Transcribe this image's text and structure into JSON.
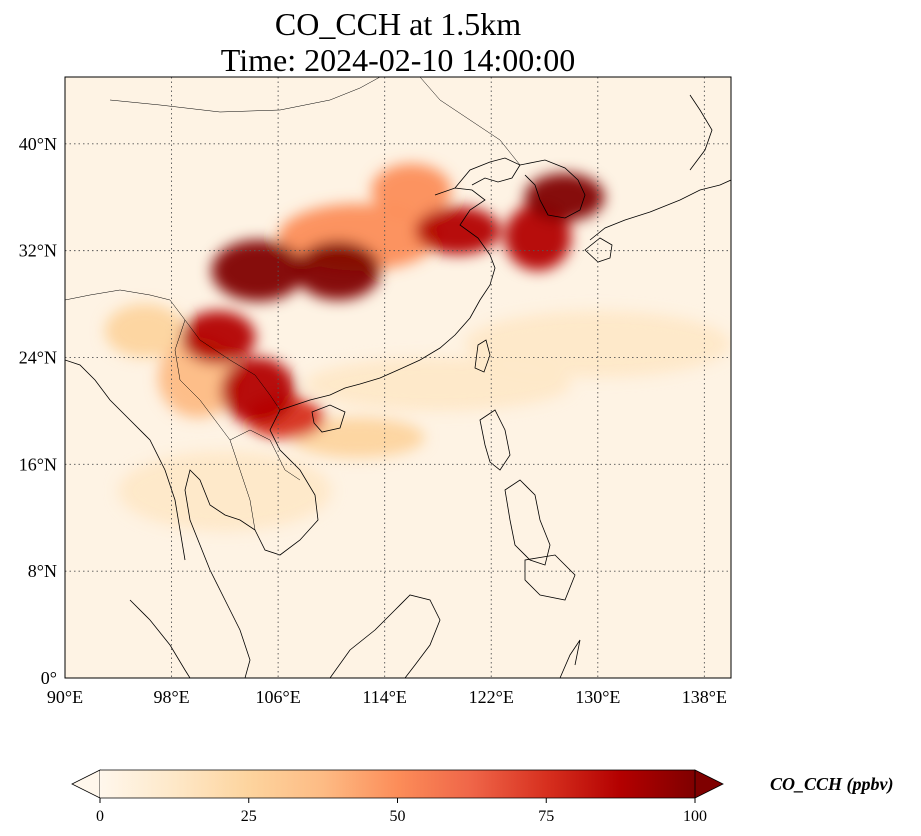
{
  "title": {
    "line1": "CO_CCH at 1.5km",
    "line2": "Time: 2024-02-10 14:00:00"
  },
  "map": {
    "lon_range": [
      90,
      140
    ],
    "lat_range": [
      0,
      45
    ],
    "x_ticks": [
      {
        "value": 90,
        "label": "90°E"
      },
      {
        "value": 98,
        "label": "98°E"
      },
      {
        "value": 106,
        "label": "106°E"
      },
      {
        "value": 114,
        "label": "114°E"
      },
      {
        "value": 122,
        "label": "122°E"
      },
      {
        "value": 130,
        "label": "130°E"
      },
      {
        "value": 138,
        "label": "138°E"
      }
    ],
    "y_ticks": [
      {
        "value": 0,
        "label": "0°"
      },
      {
        "value": 8,
        "label": "8°N"
      },
      {
        "value": 16,
        "label": "16°N"
      },
      {
        "value": 24,
        "label": "24°N"
      },
      {
        "value": 32,
        "label": "32°N"
      },
      {
        "value": 40,
        "label": "40°N"
      }
    ],
    "gridlines": "dotted",
    "colormap": "OrRd",
    "field_description": "plume intensity regions (lon, lat, value in ppbv)",
    "plumes": [
      {
        "lon": 104.5,
        "lat": 30.5,
        "rlon": 3.5,
        "rlat": 2.3,
        "value": 100
      },
      {
        "lon": 110.5,
        "lat": 30.5,
        "rlon": 3.2,
        "rlat": 2.2,
        "value": 95
      },
      {
        "lon": 101.5,
        "lat": 25.5,
        "rlon": 2.8,
        "rlat": 2.0,
        "value": 85
      },
      {
        "lon": 104.5,
        "lat": 21.5,
        "rlon": 2.8,
        "rlat": 2.5,
        "value": 90
      },
      {
        "lon": 106.5,
        "lat": 19.5,
        "rlon": 3.0,
        "rlat": 1.6,
        "value": 70
      },
      {
        "lon": 119.5,
        "lat": 33.5,
        "rlon": 3.2,
        "rlat": 1.8,
        "value": 90
      },
      {
        "lon": 125.5,
        "lat": 33.0,
        "rlon": 2.5,
        "rlat": 2.5,
        "value": 90
      },
      {
        "lon": 127.5,
        "lat": 36.0,
        "rlon": 3.0,
        "rlat": 1.8,
        "value": 95
      },
      {
        "lon": 116.0,
        "lat": 36.5,
        "rlon": 3.0,
        "rlat": 2.0,
        "value": 55
      },
      {
        "lon": 112.0,
        "lat": 33.0,
        "rlon": 6.0,
        "rlat": 2.5,
        "value": 45
      },
      {
        "lon": 100.0,
        "lat": 22.5,
        "rlon": 3.0,
        "rlat": 3.0,
        "value": 40
      },
      {
        "lon": 118.0,
        "lat": 22.0,
        "rlon": 10.0,
        "rlat": 2.0,
        "value": 18
      },
      {
        "lon": 130.0,
        "lat": 25.0,
        "rlon": 10.0,
        "rlat": 2.5,
        "value": 12
      },
      {
        "lon": 102.0,
        "lat": 14.0,
        "rlon": 8.0,
        "rlat": 3.0,
        "value": 10
      },
      {
        "lon": 112.0,
        "lat": 18.0,
        "rlon": 5.0,
        "rlat": 1.5,
        "value": 20
      },
      {
        "lon": 96.0,
        "lat": 26.0,
        "rlon": 3.0,
        "rlat": 2.0,
        "value": 20
      }
    ]
  },
  "colorbar": {
    "label": "CO_CCH (ppbv)",
    "min": 0,
    "max": 100,
    "extend": "both",
    "ticks": [
      {
        "value": 0,
        "label": "0"
      },
      {
        "value": 25,
        "label": "25"
      },
      {
        "value": 50,
        "label": "50"
      },
      {
        "value": 75,
        "label": "75"
      },
      {
        "value": 100,
        "label": "100"
      }
    ],
    "colors": [
      "#fff7ec",
      "#fee8c8",
      "#fdd49e",
      "#fdbb84",
      "#fc8d59",
      "#ef6548",
      "#d7301f",
      "#b30000",
      "#7f0000"
    ]
  }
}
